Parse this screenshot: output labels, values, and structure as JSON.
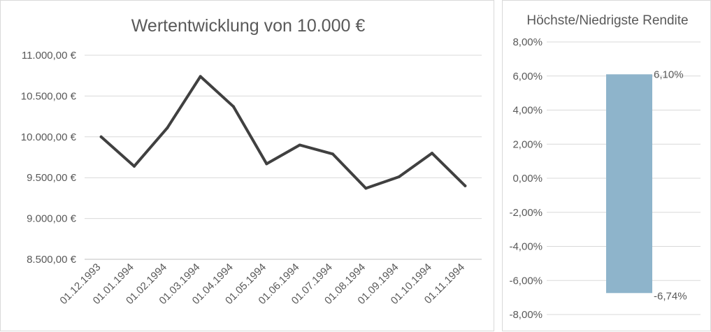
{
  "colors": {
    "line": "#404040",
    "bar": "#8eb4cb",
    "grid": "#d9d9d9",
    "text": "#595959",
    "background": "#ffffff"
  },
  "chart_data": [
    {
      "type": "line",
      "title": "Wertentwicklung von 10.000 €",
      "x": [
        "01.12.1993",
        "01.01.1994",
        "01.02.1994",
        "01.03.1994",
        "01.04.1994",
        "01.05.1994",
        "01.06.1994",
        "01.07.1994",
        "01.08.1994",
        "01.09.1994",
        "01.10.1994",
        "01.11.1994"
      ],
      "series": [
        {
          "values": [
            10000,
            9640,
            10110,
            10740,
            10370,
            9670,
            9900,
            9790,
            9370,
            9510,
            9800,
            9400
          ]
        }
      ],
      "ylim": [
        8500,
        11000
      ],
      "yticks": [
        "8.500,00 €",
        "9.000,00 €",
        "9.500,00 €",
        "10.000,00 €",
        "10.500,00 €",
        "11.000,00 €"
      ],
      "grid": true,
      "legend": "none"
    },
    {
      "type": "bar",
      "title": "Höchste/Niedrigste Rendite",
      "bar": {
        "high": 6.1,
        "low": -6.74
      },
      "data_labels": {
        "high": "6,10%",
        "low": "-6,74%"
      },
      "ylim": [
        -8,
        8
      ],
      "yticks": [
        "-8,00%",
        "-6,00%",
        "-4,00%",
        "-2,00%",
        "0,00%",
        "2,00%",
        "4,00%",
        "6,00%",
        "8,00%"
      ],
      "grid": true,
      "legend": "none"
    }
  ]
}
